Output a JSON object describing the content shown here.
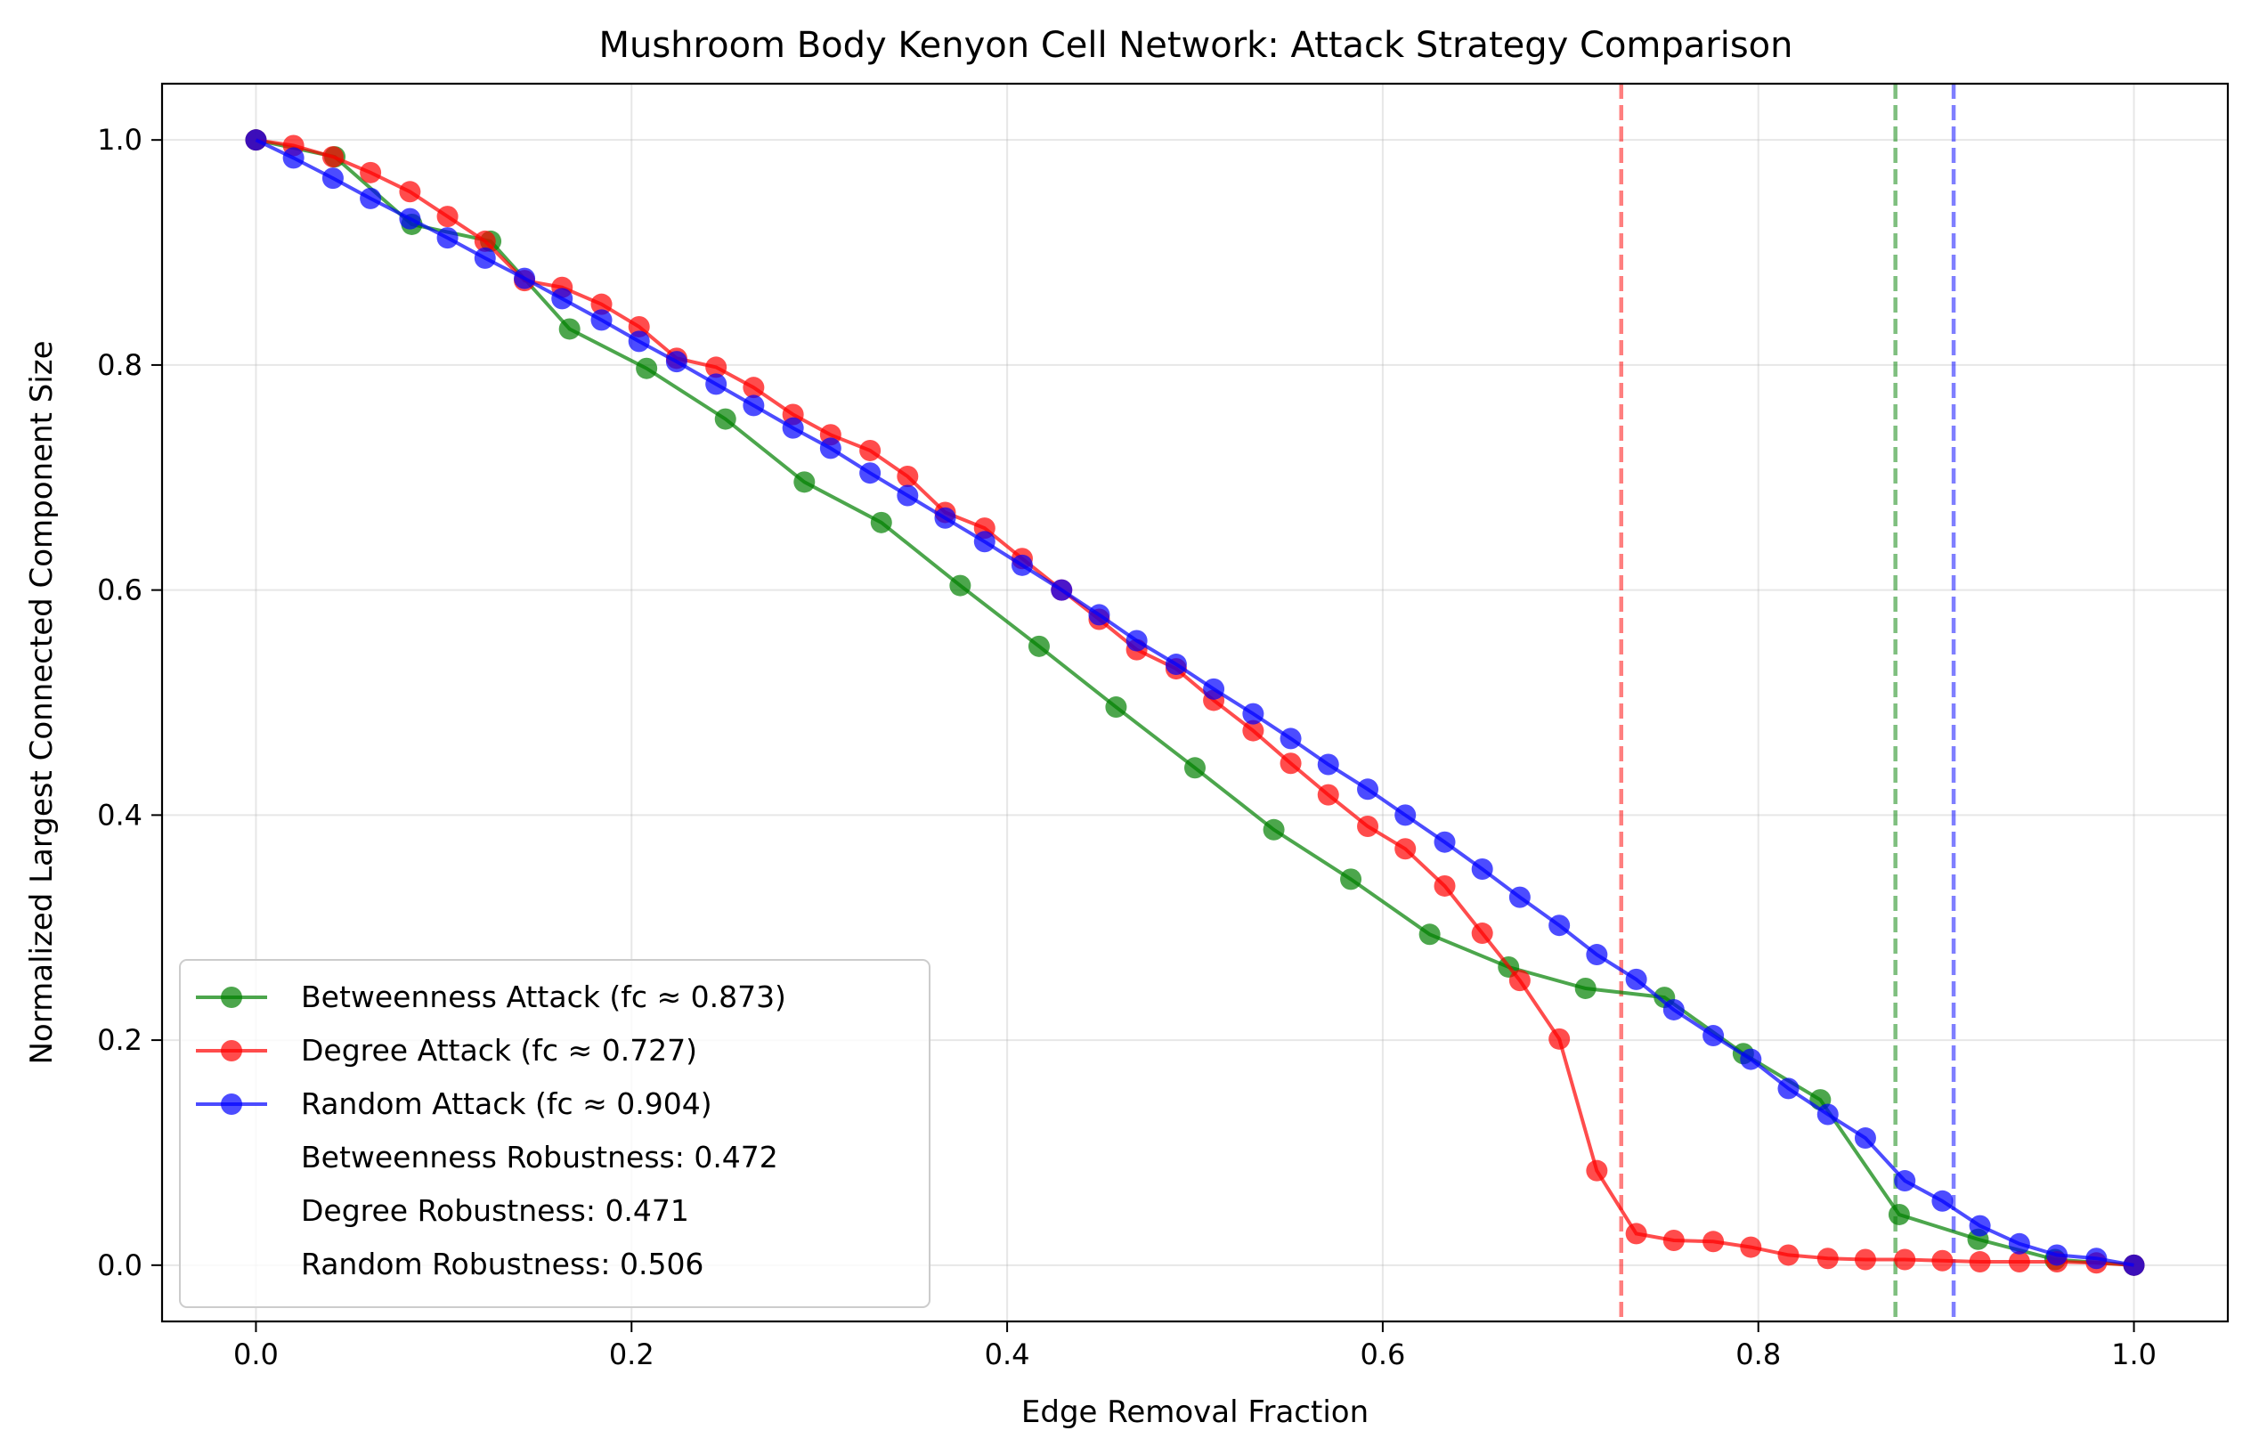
{
  "chart_data": {
    "type": "line",
    "title": "Mushroom Body Kenyon Cell Network: Attack Strategy Comparison",
    "xlabel": "Edge Removal Fraction",
    "ylabel": "Normalized Largest Connected Component Size",
    "xlim": [
      -0.05,
      1.05
    ],
    "ylim": [
      -0.05,
      1.05
    ],
    "xticks": [
      0.0,
      0.2,
      0.4,
      0.6,
      0.8,
      1.0
    ],
    "xtick_labels": [
      "0.0",
      "0.2",
      "0.4",
      "0.6",
      "0.8",
      "1.0"
    ],
    "yticks": [
      0.0,
      0.2,
      0.4,
      0.6,
      0.8,
      1.0
    ],
    "ytick_labels": [
      "0.0",
      "0.2",
      "0.4",
      "0.6",
      "0.8",
      "1.0"
    ],
    "grid": true,
    "legend_position": "lower-left",
    "series": [
      {
        "name": "Betweenness Attack (fc ≈ 0.873)",
        "color": "#008000",
        "x": [
          0.0,
          0.042,
          0.083,
          0.125,
          0.167,
          0.208,
          0.25,
          0.292,
          0.333,
          0.375,
          0.417,
          0.458,
          0.5,
          0.542,
          0.583,
          0.625,
          0.667,
          0.708,
          0.75,
          0.792,
          0.833,
          0.875,
          0.917,
          0.958,
          1.0
        ],
        "y": [
          1.0,
          0.985,
          0.925,
          0.91,
          0.832,
          0.797,
          0.752,
          0.696,
          0.66,
          0.604,
          0.55,
          0.496,
          0.442,
          0.387,
          0.343,
          0.294,
          0.265,
          0.246,
          0.238,
          0.188,
          0.147,
          0.045,
          0.023,
          0.005,
          0.0
        ],
        "threshold": 0.873
      },
      {
        "name": "Degree Attack (fc ≈ 0.727)",
        "color": "#ff0000",
        "x": [
          0.0,
          0.02,
          0.041,
          0.061,
          0.082,
          0.102,
          0.122,
          0.143,
          0.163,
          0.184,
          0.204,
          0.224,
          0.245,
          0.265,
          0.286,
          0.306,
          0.327,
          0.347,
          0.367,
          0.388,
          0.408,
          0.429,
          0.449,
          0.469,
          0.49,
          0.51,
          0.531,
          0.551,
          0.571,
          0.592,
          0.612,
          0.633,
          0.653,
          0.673,
          0.694,
          0.714,
          0.735,
          0.755,
          0.776,
          0.796,
          0.816,
          0.837,
          0.857,
          0.878,
          0.898,
          0.918,
          0.939,
          0.959,
          0.98,
          1.0
        ],
        "y": [
          1.0,
          0.995,
          0.985,
          0.971,
          0.954,
          0.932,
          0.91,
          0.875,
          0.869,
          0.854,
          0.834,
          0.806,
          0.798,
          0.78,
          0.756,
          0.738,
          0.724,
          0.701,
          0.669,
          0.655,
          0.628,
          0.6,
          0.574,
          0.547,
          0.53,
          0.502,
          0.475,
          0.446,
          0.418,
          0.39,
          0.37,
          0.337,
          0.295,
          0.253,
          0.201,
          0.084,
          0.028,
          0.022,
          0.021,
          0.016,
          0.009,
          0.006,
          0.005,
          0.005,
          0.004,
          0.003,
          0.003,
          0.003,
          0.002,
          0.0
        ],
        "threshold": 0.727
      },
      {
        "name": "Random Attack (fc ≈ 0.904)",
        "color": "#0000ff",
        "x": [
          0.0,
          0.02,
          0.041,
          0.061,
          0.082,
          0.102,
          0.122,
          0.143,
          0.163,
          0.184,
          0.204,
          0.224,
          0.245,
          0.265,
          0.286,
          0.306,
          0.327,
          0.347,
          0.367,
          0.388,
          0.408,
          0.429,
          0.449,
          0.469,
          0.49,
          0.51,
          0.531,
          0.551,
          0.571,
          0.592,
          0.612,
          0.633,
          0.653,
          0.673,
          0.694,
          0.714,
          0.735,
          0.755,
          0.776,
          0.796,
          0.816,
          0.837,
          0.857,
          0.878,
          0.898,
          0.918,
          0.939,
          0.959,
          0.98,
          1.0
        ],
        "y": [
          1.0,
          0.984,
          0.966,
          0.948,
          0.93,
          0.913,
          0.895,
          0.877,
          0.859,
          0.84,
          0.821,
          0.803,
          0.783,
          0.764,
          0.744,
          0.726,
          0.704,
          0.684,
          0.664,
          0.643,
          0.622,
          0.6,
          0.578,
          0.555,
          0.534,
          0.512,
          0.49,
          0.468,
          0.445,
          0.423,
          0.4,
          0.376,
          0.352,
          0.327,
          0.302,
          0.276,
          0.254,
          0.227,
          0.204,
          0.183,
          0.157,
          0.134,
          0.113,
          0.075,
          0.057,
          0.035,
          0.019,
          0.009,
          0.006,
          0.0
        ],
        "threshold": 0.904
      }
    ],
    "legend_entries": [
      "Betweenness Attack (fc ≈ 0.873)",
      "Degree Attack (fc ≈ 0.727)",
      "Random Attack (fc ≈ 0.904)",
      "Betweenness Robustness: 0.472",
      "Degree Robustness: 0.471",
      "Random Robustness: 0.506"
    ]
  }
}
